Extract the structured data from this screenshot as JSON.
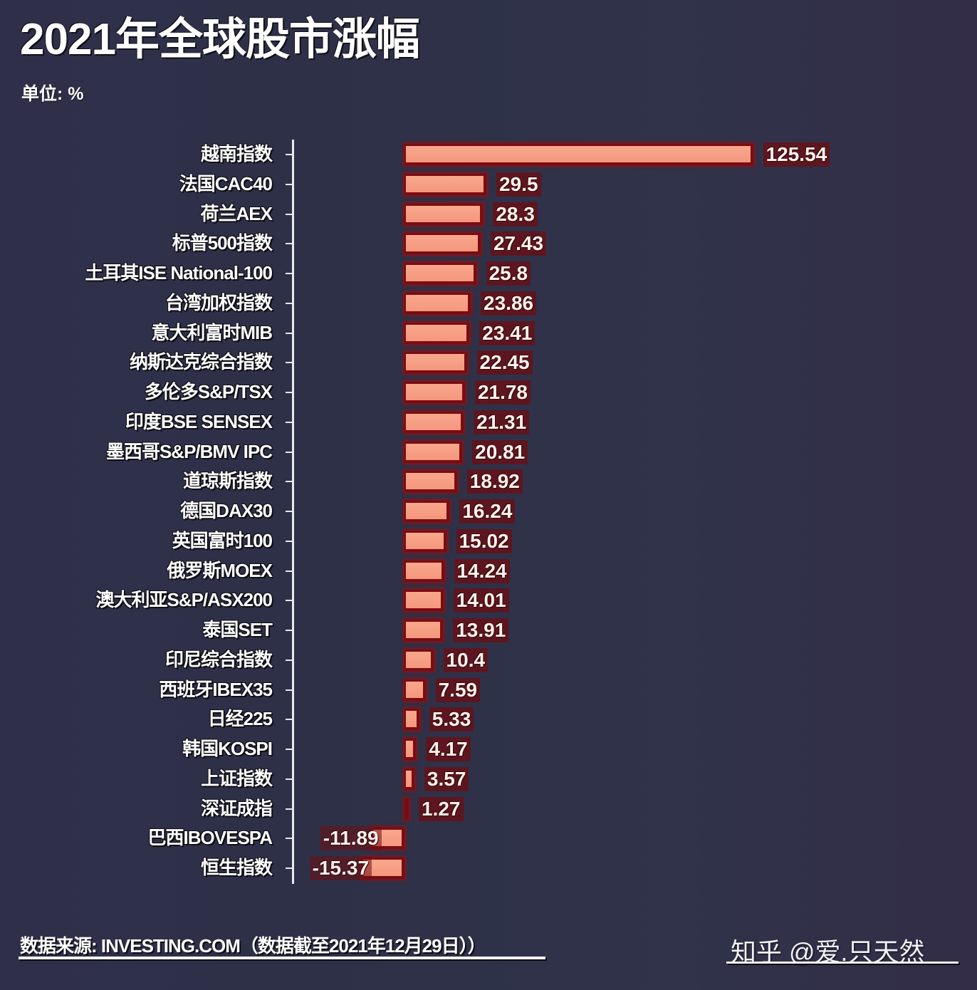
{
  "header": {
    "title": "2021年全球股市涨幅",
    "unit": "单位: %"
  },
  "footer": {
    "source": "数据来源: INVESTING.COM（数据截至2021年12月29日））",
    "watermark": "知乎 @爱.只天然"
  },
  "colors": {
    "background": "#2f2f4a",
    "bar_fill": "#f59a80",
    "bar_border": "#7a0c12",
    "text": "#ffffff",
    "axis": "#e8e8ee"
  },
  "chart_data": {
    "type": "bar",
    "orientation": "horizontal",
    "title": "2021年全球股市涨幅",
    "subtitle": "单位: %",
    "xlabel": "",
    "ylabel": "",
    "grid": false,
    "legend": null,
    "categories": [
      "越南指数",
      "法国CAC40",
      "荷兰AEX",
      "标普500指数",
      "土耳其ISE National-100",
      "台湾加权指数",
      "意大利富时MIB",
      "纳斯达克综合指数",
      "多伦多S&P/TSX",
      "印度BSE SENSEX",
      "墨西哥S&P/BMV IPC",
      "道琼斯指数",
      "德国DAX30",
      "英国富时100",
      "俄罗斯MOEX",
      "澳大利亚S&P/ASX200",
      "泰国SET",
      "印尼综合指数",
      "西班牙IBEX35",
      "日经225",
      "韩国KOSPI",
      "上证指数",
      "深证成指",
      "巴西IBOVESPA",
      "恒生指数"
    ],
    "values": [
      125.54,
      29.5,
      28.3,
      27.43,
      25.8,
      23.86,
      23.41,
      22.45,
      21.78,
      21.31,
      20.81,
      18.92,
      16.24,
      15.02,
      14.24,
      14.01,
      13.91,
      10.4,
      7.59,
      5.33,
      4.17,
      3.57,
      1.27,
      -11.89,
      -15.37
    ],
    "value_labels": [
      "125.54",
      "29.5",
      "28.3",
      "27.43",
      "25.8",
      "23.86",
      "23.41",
      "22.45",
      "21.78",
      "21.31",
      "20.81",
      "18.92",
      "16.24",
      "15.02",
      "14.24",
      "14.01",
      "13.91",
      "10.4",
      "7.59",
      "5.33",
      "4.17",
      "3.57",
      "1.27",
      "-11.89",
      "-15.37"
    ],
    "xlim": [
      -16,
      126
    ],
    "source": "数据来源: INVESTING.COM（数据截至2021年12月29日））"
  }
}
